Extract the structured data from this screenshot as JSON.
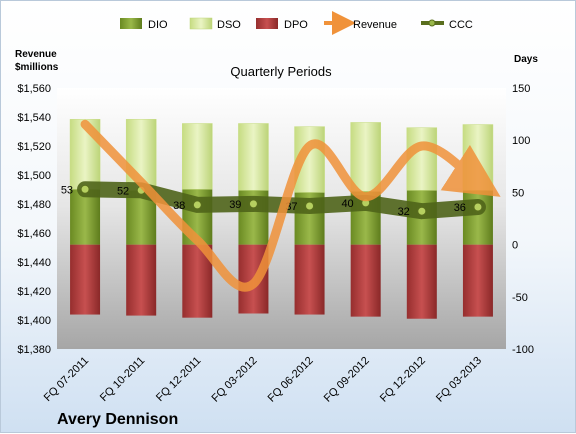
{
  "chart_data": {
    "type": "bar",
    "title": "Quarterly Periods",
    "company": "Avery Dennison",
    "left_axis_label_line1": "Revenue",
    "left_axis_label_line2": "$millions",
    "right_axis_label": "Days",
    "categories": [
      "FQ 07-2011",
      "FQ 10-2011",
      "FQ 12-2011",
      "FQ 03-2012",
      "FQ 06-2012",
      "FQ 09-2012",
      "FQ 12-2012",
      "FQ 03-2013"
    ],
    "left_axis": {
      "min": 1380,
      "max": 1560,
      "step": 20,
      "prefix": "$"
    },
    "right_axis": {
      "min": -100,
      "max": 150,
      "step": 50
    },
    "series": [
      {
        "name": "DIO",
        "axis": "right",
        "kind": "stacked-bar",
        "values": [
          53,
          52,
          53,
          52,
          50,
          51,
          52,
          52
        ]
      },
      {
        "name": "DSO",
        "axis": "right",
        "kind": "stacked-bar",
        "values": [
          67,
          68,
          63,
          64,
          63,
          66,
          60,
          63
        ]
      },
      {
        "name": "DPO",
        "axis": "right",
        "kind": "stacked-bar-negative",
        "values": [
          -67,
          -68,
          -70,
          -66,
          -67,
          -69,
          -71,
          -69
        ]
      },
      {
        "name": "Revenue",
        "axis": "left",
        "kind": "line",
        "values": [
          1535,
          1495,
          1455,
          1425,
          1520,
          1485,
          1520,
          1495
        ]
      },
      {
        "name": "CCC",
        "axis": "right",
        "kind": "line",
        "values": [
          53,
          52,
          38,
          39,
          37,
          40,
          32,
          36
        ]
      }
    ],
    "ccc_labels": [
      "53",
      "52",
      "38",
      "39",
      "37",
      "40",
      "32",
      "36"
    ],
    "colors": {
      "DIO": "#7a9a2e",
      "DSO": "#d6e89a",
      "DPO": "#b33b3b",
      "Revenue": "#f0923a",
      "CCC": "#5a6e1e"
    },
    "legend_position": "top",
    "grid": false
  }
}
